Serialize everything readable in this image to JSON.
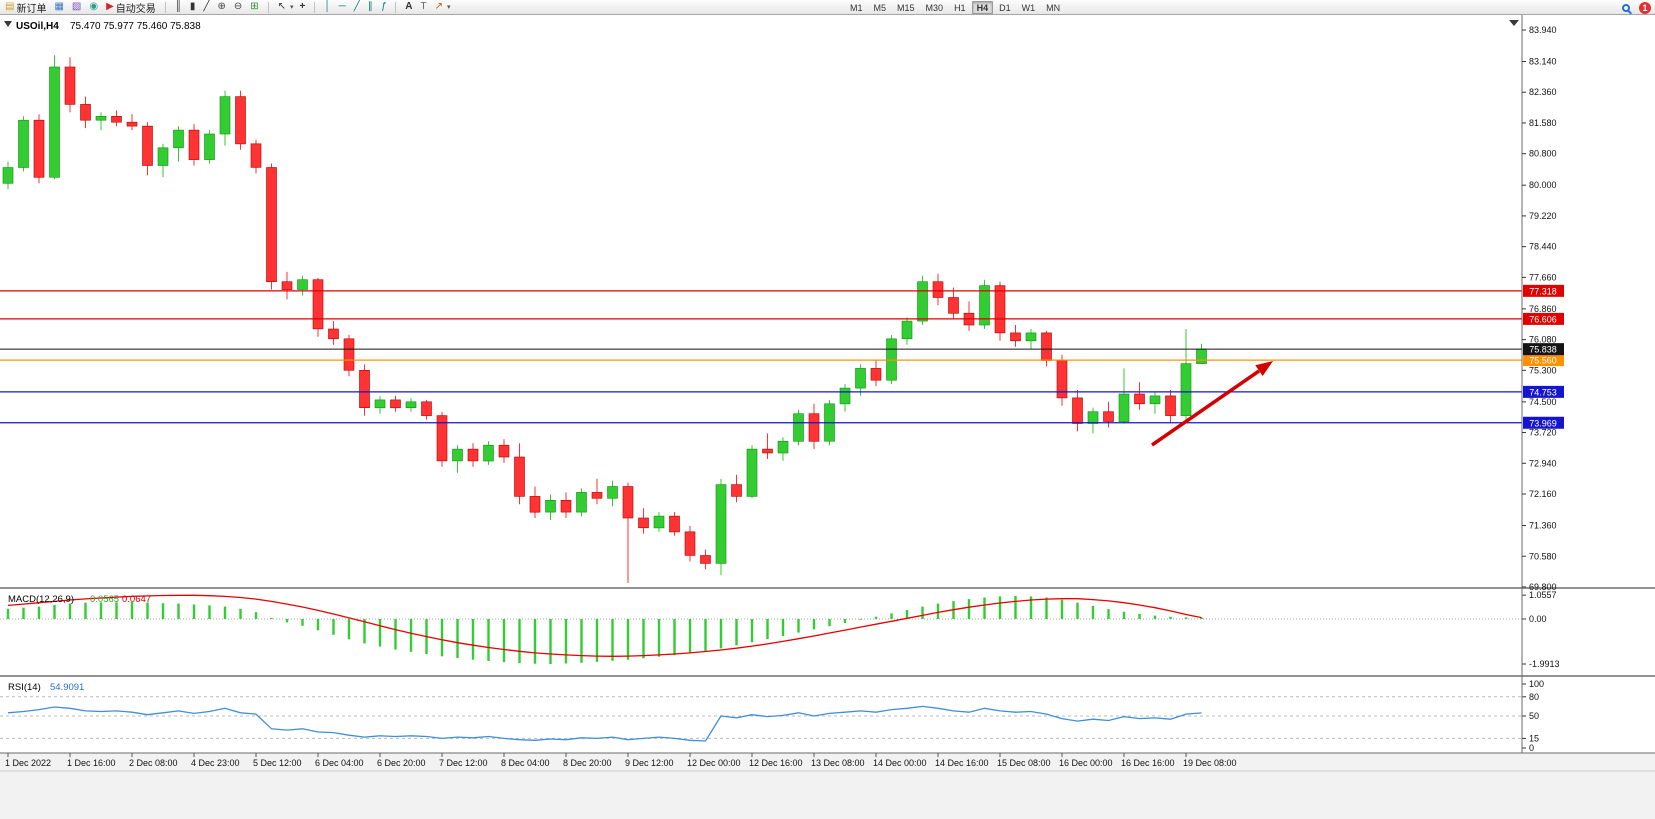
{
  "toolbar": {
    "new_order": "新订单",
    "auto_trading": "自动交易",
    "timeframes": [
      "M1",
      "M5",
      "M15",
      "M30",
      "H1",
      "H4",
      "D1",
      "W1",
      "MN"
    ],
    "active_timeframe": "H4",
    "notification_count": "1",
    "icons": {
      "new_order": "▤",
      "new_chart": "▦",
      "profiles": "▧",
      "data_window": "◉",
      "auto_trading": "▶",
      "bars": "║",
      "candles": "▮",
      "line_chart": "╱",
      "zoom_in": "⊕",
      "zoom_out": "⊖",
      "tile": "⊞",
      "cursor": "↖",
      "crosshair": "+",
      "vline": "│",
      "hline": "─",
      "trendline": "╱",
      "channel": "∥",
      "fibonacci": "ƒ",
      "text": "A",
      "label": "T",
      "arrows": "↗",
      "caret": "▾"
    }
  },
  "chart": {
    "symbol_label": "USOil,H4",
    "ohlc_readout": "75.470 75.977 75.460 75.838",
    "price_axis_labels": [
      "83.940",
      "83.140",
      "82.360",
      "81.580",
      "80.800",
      "80.000",
      "79.220",
      "78.440",
      "77.660",
      "76.860",
      "76.080",
      "75.300",
      "74.500",
      "73.720",
      "72.940",
      "72.160",
      "71.360",
      "70.580",
      "69.800"
    ],
    "time_axis_labels": [
      "1 Dec 2022",
      "1 Dec 16:00",
      "2 Dec 08:00",
      "4 Dec 23:00",
      "5 Dec 12:00",
      "6 Dec 04:00",
      "6 Dec 20:00",
      "7 Dec 12:00",
      "8 Dec 04:00",
      "8 Dec 20:00",
      "9 Dec 12:00",
      "12 Dec 00:00",
      "12 Dec 16:00",
      "13 Dec 08:00",
      "14 Dec 00:00",
      "14 Dec 16:00",
      "15 Dec 08:00",
      "16 Dec 00:00",
      "16 Dec 16:00",
      "19 Dec 08:00"
    ],
    "levels": [
      {
        "label": "77.318",
        "value": 77.318,
        "color": "#e00000"
      },
      {
        "label": "76.606",
        "value": 76.606,
        "color": "#e00000"
      },
      {
        "label": "75.560",
        "value": 75.56,
        "color": "#ff9000"
      },
      {
        "label": "74.753",
        "value": 74.753,
        "color": "#1515cf"
      },
      {
        "label": "73.969",
        "value": 73.969,
        "color": "#1515cf"
      }
    ],
    "current_price": {
      "label": "75.838",
      "value": 75.838,
      "color": "#151515"
    },
    "trend_arrow": {
      "color": "#d40000",
      "direction": "up-right"
    },
    "colors": {
      "up": "#33cc33",
      "down": "#ff3333",
      "macd_hist": "#33cc33",
      "macd_signal": "#e80000",
      "rsi": "#3f8edc"
    }
  },
  "indicators": {
    "macd": {
      "label": "MACD(12,26,9)",
      "value_main": "0.0565",
      "value_signal": "0.0647",
      "axis_labels": [
        "1.0557",
        "0.00",
        "-1.9913"
      ],
      "axis_values": [
        1.0557,
        0,
        -1.9913
      ]
    },
    "rsi": {
      "label": "RSI(14)",
      "value": "54.9091",
      "axis_labels": [
        "100",
        "80",
        "50",
        "15",
        "0"
      ],
      "axis_values": [
        100,
        80,
        50,
        15,
        0
      ],
      "levels": [
        80,
        50,
        15
      ]
    }
  },
  "chart_data": {
    "type": "candlestick",
    "symbol": "USOil",
    "timeframe": "H4",
    "price_axis_range": [
      69.8,
      83.94
    ],
    "visible_levels": [
      77.318,
      76.606,
      75.838,
      75.56,
      74.753,
      73.969
    ],
    "ohlc": [
      [
        80.05,
        80.6,
        79.9,
        80.45
      ],
      [
        80.45,
        81.75,
        80.35,
        81.65
      ],
      [
        81.65,
        81.8,
        80.05,
        80.2
      ],
      [
        80.2,
        83.3,
        80.15,
        83.0
      ],
      [
        83.0,
        83.25,
        81.85,
        82.05
      ],
      [
        82.05,
        82.25,
        81.45,
        81.65
      ],
      [
        81.65,
        81.85,
        81.4,
        81.75
      ],
      [
        81.75,
        81.9,
        81.5,
        81.6
      ],
      [
        81.6,
        81.8,
        81.4,
        81.5
      ],
      [
        81.5,
        81.6,
        80.25,
        80.5
      ],
      [
        80.5,
        81.05,
        80.2,
        80.95
      ],
      [
        80.95,
        81.5,
        80.6,
        81.4
      ],
      [
        81.4,
        81.55,
        80.5,
        80.65
      ],
      [
        80.65,
        81.4,
        80.55,
        81.3
      ],
      [
        81.3,
        82.4,
        81.0,
        82.25
      ],
      [
        82.25,
        82.4,
        80.9,
        81.05
      ],
      [
        81.05,
        81.15,
        80.3,
        80.45
      ],
      [
        80.45,
        80.55,
        77.35,
        77.55
      ],
      [
        77.55,
        77.8,
        77.1,
        77.35
      ],
      [
        77.35,
        77.7,
        77.2,
        77.6
      ],
      [
        77.6,
        77.65,
        76.15,
        76.35
      ],
      [
        76.35,
        76.55,
        75.95,
        76.1
      ],
      [
        76.1,
        76.2,
        75.15,
        75.3
      ],
      [
        75.3,
        75.45,
        74.15,
        74.35
      ],
      [
        74.35,
        74.65,
        74.2,
        74.55
      ],
      [
        74.55,
        74.65,
        74.25,
        74.35
      ],
      [
        74.35,
        74.6,
        74.25,
        74.5
      ],
      [
        74.5,
        74.55,
        74.05,
        74.15
      ],
      [
        74.15,
        74.25,
        72.85,
        73.0
      ],
      [
        73.0,
        73.4,
        72.7,
        73.3
      ],
      [
        73.3,
        73.45,
        72.85,
        73.0
      ],
      [
        73.0,
        73.5,
        72.9,
        73.4
      ],
      [
        73.4,
        73.55,
        72.95,
        73.1
      ],
      [
        73.1,
        73.45,
        71.9,
        72.1
      ],
      [
        72.1,
        72.35,
        71.55,
        71.7
      ],
      [
        71.7,
        72.15,
        71.5,
        72.0
      ],
      [
        72.0,
        72.2,
        71.55,
        71.7
      ],
      [
        71.7,
        72.3,
        71.6,
        72.2
      ],
      [
        72.2,
        72.55,
        71.9,
        72.05
      ],
      [
        72.05,
        72.5,
        71.85,
        72.35
      ],
      [
        72.35,
        72.45,
        69.9,
        71.55
      ],
      [
        71.55,
        71.8,
        71.15,
        71.3
      ],
      [
        71.3,
        71.7,
        71.2,
        71.6
      ],
      [
        71.6,
        71.7,
        71.1,
        71.2
      ],
      [
        71.2,
        71.35,
        70.45,
        70.6
      ],
      [
        70.6,
        70.75,
        70.25,
        70.4
      ],
      [
        70.4,
        72.55,
        70.1,
        72.4
      ],
      [
        72.4,
        72.65,
        71.95,
        72.1
      ],
      [
        72.1,
        73.4,
        72.05,
        73.3
      ],
      [
        73.3,
        73.7,
        73.05,
        73.2
      ],
      [
        73.2,
        73.6,
        73.0,
        73.5
      ],
      [
        73.5,
        74.3,
        73.4,
        74.2
      ],
      [
        74.2,
        74.45,
        73.3,
        73.5
      ],
      [
        73.5,
        74.55,
        73.4,
        74.45
      ],
      [
        74.45,
        74.95,
        74.25,
        74.85
      ],
      [
        74.85,
        75.45,
        74.65,
        75.35
      ],
      [
        75.35,
        75.55,
        74.9,
        75.05
      ],
      [
        75.05,
        76.2,
        74.95,
        76.1
      ],
      [
        76.1,
        76.65,
        75.95,
        76.55
      ],
      [
        76.55,
        77.7,
        76.45,
        77.55
      ],
      [
        77.55,
        77.75,
        76.95,
        77.15
      ],
      [
        77.15,
        77.4,
        76.6,
        76.75
      ],
      [
        76.75,
        77.05,
        76.3,
        76.45
      ],
      [
        76.45,
        77.6,
        76.35,
        77.45
      ],
      [
        77.45,
        77.55,
        76.05,
        76.25
      ],
      [
        76.25,
        76.45,
        75.9,
        76.05
      ],
      [
        76.05,
        76.35,
        75.85,
        76.25
      ],
      [
        76.25,
        76.3,
        75.4,
        75.55
      ],
      [
        75.55,
        75.7,
        74.4,
        74.6
      ],
      [
        74.6,
        74.8,
        73.75,
        73.95
      ],
      [
        73.95,
        74.35,
        73.7,
        74.25
      ],
      [
        74.25,
        74.5,
        73.85,
        74.0
      ],
      [
        74.0,
        75.35,
        73.95,
        74.7
      ],
      [
        74.7,
        75.0,
        74.3,
        74.45
      ],
      [
        74.45,
        74.75,
        74.2,
        74.65
      ],
      [
        74.65,
        74.8,
        73.95,
        74.15
      ],
      [
        74.15,
        76.35,
        74.05,
        75.47
      ],
      [
        75.47,
        75.977,
        75.46,
        75.838
      ]
    ],
    "macd_histogram": [
      0.45,
      0.5,
      0.55,
      0.62,
      0.68,
      0.72,
      0.73,
      0.74,
      0.75,
      0.73,
      0.7,
      0.68,
      0.64,
      0.6,
      0.55,
      0.45,
      0.3,
      0.05,
      -0.15,
      -0.3,
      -0.5,
      -0.7,
      -0.9,
      -1.08,
      -1.22,
      -1.35,
      -1.45,
      -1.55,
      -1.65,
      -1.73,
      -1.8,
      -1.86,
      -1.91,
      -1.95,
      -1.98,
      -1.99,
      -1.97,
      -1.94,
      -1.9,
      -1.85,
      -1.8,
      -1.74,
      -1.67,
      -1.6,
      -1.52,
      -1.42,
      -1.3,
      -1.17,
      -1.03,
      -0.89,
      -0.75,
      -0.6,
      -0.46,
      -0.32,
      -0.18,
      -0.04,
      0.1,
      0.25,
      0.4,
      0.55,
      0.68,
      0.79,
      0.88,
      0.95,
      1.0,
      1.02,
      1.0,
      0.95,
      0.85,
      0.72,
      0.58,
      0.44,
      0.32,
      0.22,
      0.15,
      0.1,
      0.07,
      0.06
    ],
    "macd_signal": [
      0.6,
      0.66,
      0.72,
      0.78,
      0.84,
      0.89,
      0.93,
      0.97,
      1.0,
      1.02,
      1.04,
      1.05,
      1.05,
      1.03,
      1.0,
      0.95,
      0.88,
      0.78,
      0.66,
      0.53,
      0.38,
      0.22,
      0.05,
      -0.12,
      -0.3,
      -0.47,
      -0.63,
      -0.78,
      -0.92,
      -1.05,
      -1.16,
      -1.26,
      -1.35,
      -1.43,
      -1.5,
      -1.55,
      -1.59,
      -1.62,
      -1.64,
      -1.65,
      -1.64,
      -1.62,
      -1.59,
      -1.55,
      -1.5,
      -1.44,
      -1.37,
      -1.29,
      -1.2,
      -1.1,
      -0.99,
      -0.87,
      -0.75,
      -0.62,
      -0.49,
      -0.36,
      -0.23,
      -0.1,
      0.03,
      0.16,
      0.29,
      0.41,
      0.52,
      0.62,
      0.71,
      0.78,
      0.84,
      0.88,
      0.9,
      0.9,
      0.86,
      0.8,
      0.72,
      0.62,
      0.5,
      0.36,
      0.2,
      0.06
    ],
    "rsi": [
      55,
      57,
      60,
      64,
      62,
      58,
      57,
      58,
      56,
      52,
      55,
      58,
      54,
      57,
      62,
      55,
      53,
      30,
      28,
      30,
      25,
      24,
      20,
      17,
      19,
      18,
      19,
      18,
      15,
      17,
      16,
      18,
      15,
      13,
      12,
      14,
      13,
      16,
      15,
      17,
      13,
      15,
      17,
      15,
      12,
      11,
      50,
      47,
      52,
      49,
      51,
      55,
      50,
      54,
      56,
      58,
      56,
      60,
      62,
      65,
      62,
      58,
      56,
      62,
      58,
      56,
      57,
      53,
      46,
      42,
      45,
      43,
      49,
      46,
      47,
      45,
      53,
      54.9
    ]
  }
}
